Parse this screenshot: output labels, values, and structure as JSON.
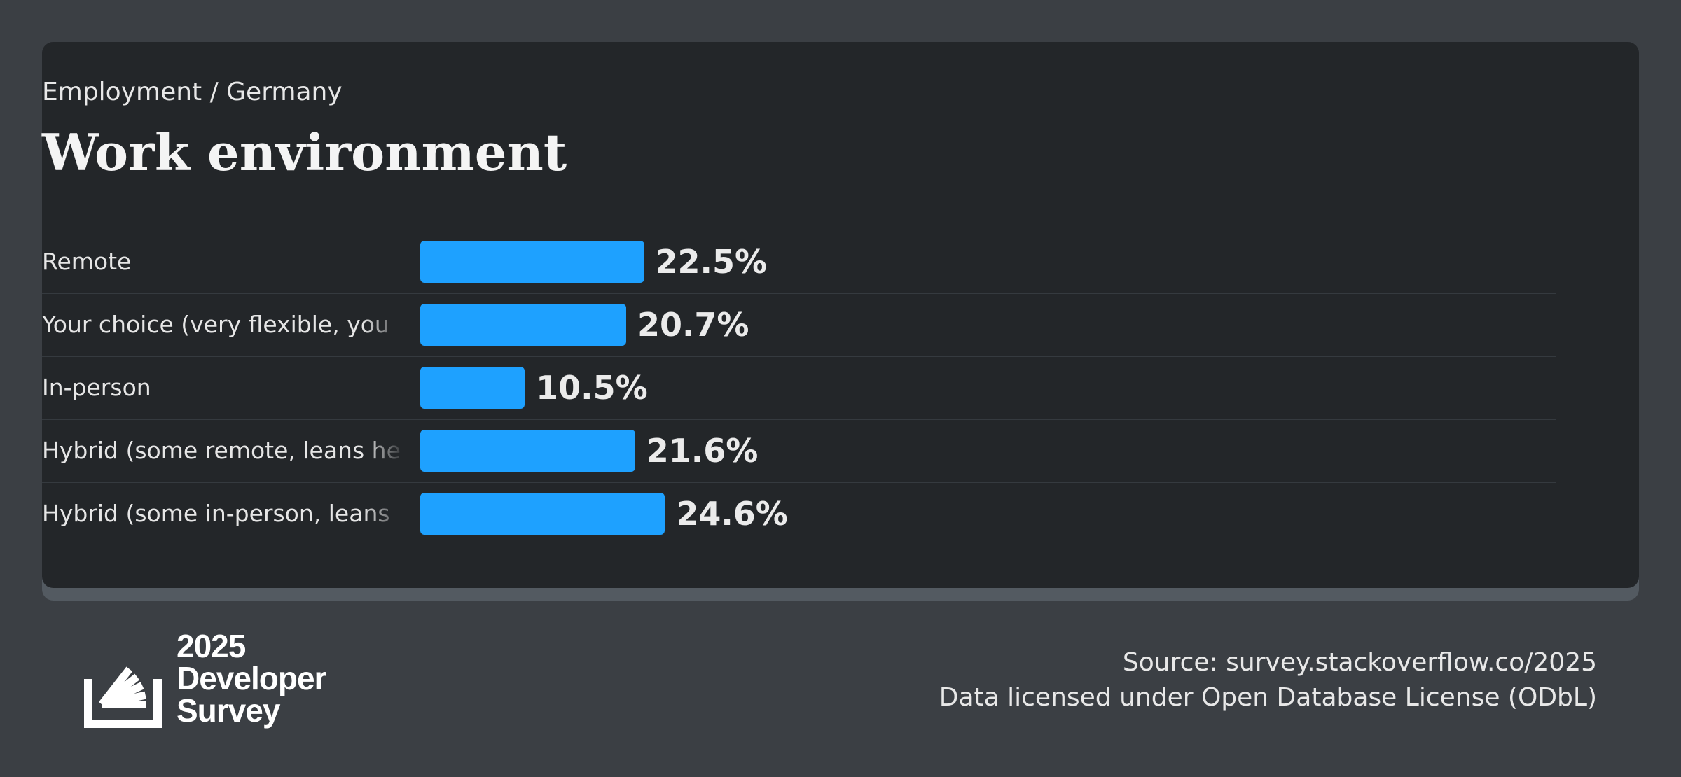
{
  "header": {
    "subtitle": "Employment / Germany",
    "title": "Work environment"
  },
  "chart_data": {
    "type": "bar",
    "orientation": "horizontal",
    "title": "Work environment",
    "subtitle": "Employment / Germany",
    "categories": [
      "Remote",
      "Your choice (very flexible, you",
      "In-person",
      "Hybrid (some remote, leans he",
      "Hybrid (some in-person, leans"
    ],
    "values": [
      22.5,
      20.7,
      10.5,
      21.6,
      24.6
    ],
    "value_labels": [
      "22.5%",
      "20.7%",
      "10.5%",
      "21.6%",
      "24.6%"
    ],
    "unit": "%",
    "bar_color": "#1ea1ff",
    "grid": false,
    "legend": "none"
  },
  "footer": {
    "logo_lines": [
      "2025",
      "Developer",
      "Survey"
    ],
    "source": "Source: survey.stackoverflow.co/2025",
    "license": "Data licensed under Open Database License (ODbL)"
  },
  "colors": {
    "background": "#3b3f44",
    "card": "#232629",
    "accent": "#1ea1ff"
  }
}
